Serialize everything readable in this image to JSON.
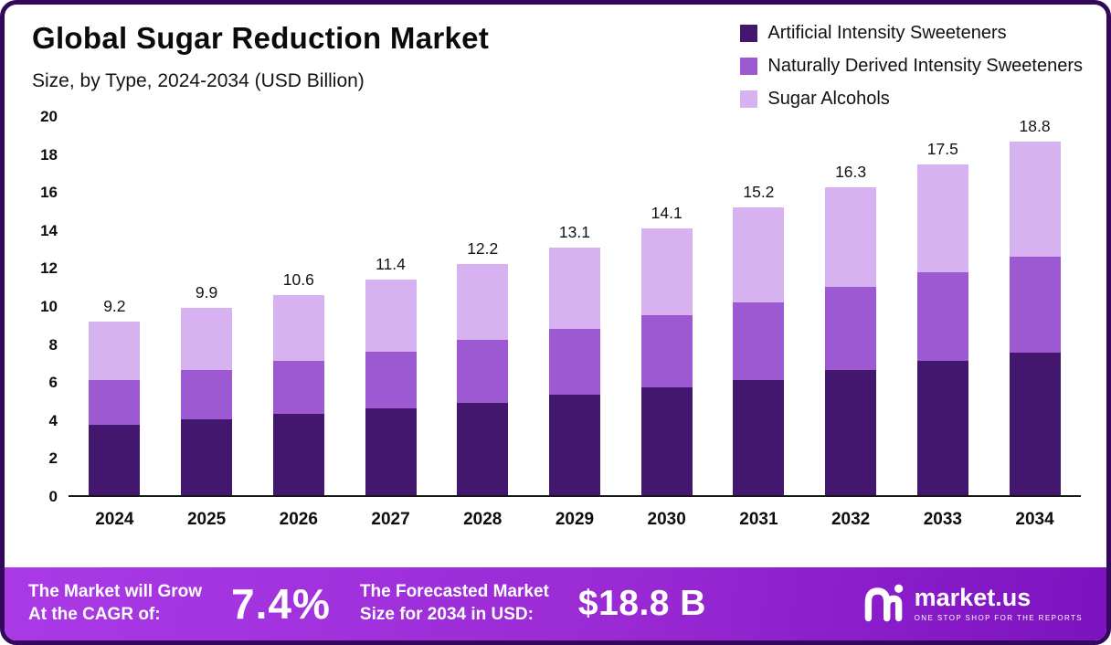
{
  "header": {
    "title": "Global Sugar Reduction Market",
    "subtitle": "Size, by Type, 2024-2034 (USD Billion)"
  },
  "chart_data": {
    "type": "bar",
    "stacked": true,
    "unit": "USD Billion",
    "title": "Global Sugar Reduction Market Size, by Type, 2024-2034 (USD Billion)",
    "categories": [
      "2024",
      "2025",
      "2026",
      "2027",
      "2028",
      "2029",
      "2030",
      "2031",
      "2032",
      "2033",
      "2034"
    ],
    "series": [
      {
        "name": "Artificial Intensity Sweeteners",
        "color": "#44176f",
        "values": [
          3.7,
          4.0,
          4.3,
          4.6,
          4.9,
          5.3,
          5.7,
          6.1,
          6.6,
          7.1,
          7.6
        ]
      },
      {
        "name": "Naturally Derived Intensity Sweeteners",
        "color": "#9c59d1",
        "values": [
          2.4,
          2.6,
          2.8,
          3.0,
          3.3,
          3.5,
          3.8,
          4.1,
          4.4,
          4.7,
          5.1
        ]
      },
      {
        "name": "Sugar Alcohols",
        "color": "#d6b3f0",
        "values": [
          3.1,
          3.3,
          3.5,
          3.8,
          4.0,
          4.3,
          4.6,
          5.0,
          5.3,
          5.7,
          6.1
        ]
      }
    ],
    "totals": [
      "9.2",
      "9.9",
      "10.6",
      "11.4",
      "12.2",
      "13.1",
      "14.1",
      "15.2",
      "16.3",
      "17.5",
      "18.8"
    ],
    "ylim": [
      0,
      20
    ],
    "yticks": [
      0,
      2,
      4,
      6,
      8,
      10,
      12,
      14,
      16,
      18,
      20
    ],
    "grid": false,
    "legend_position": "top-right"
  },
  "banner": {
    "cagr_label": "The Market will Grow\nAt the CAGR of:",
    "cagr_value": "7.4%",
    "forecast_label": "The Forecasted Market\nSize for 2034 in USD:",
    "forecast_value": "$18.8 B",
    "logo_text": "market.us",
    "logo_tagline": "ONE STOP SHOP FOR THE REPORTS"
  },
  "colors": {
    "frame_border": "#33085c",
    "banner_gradient_start": "#a93ae6",
    "banner_gradient_end": "#7c12c0"
  }
}
